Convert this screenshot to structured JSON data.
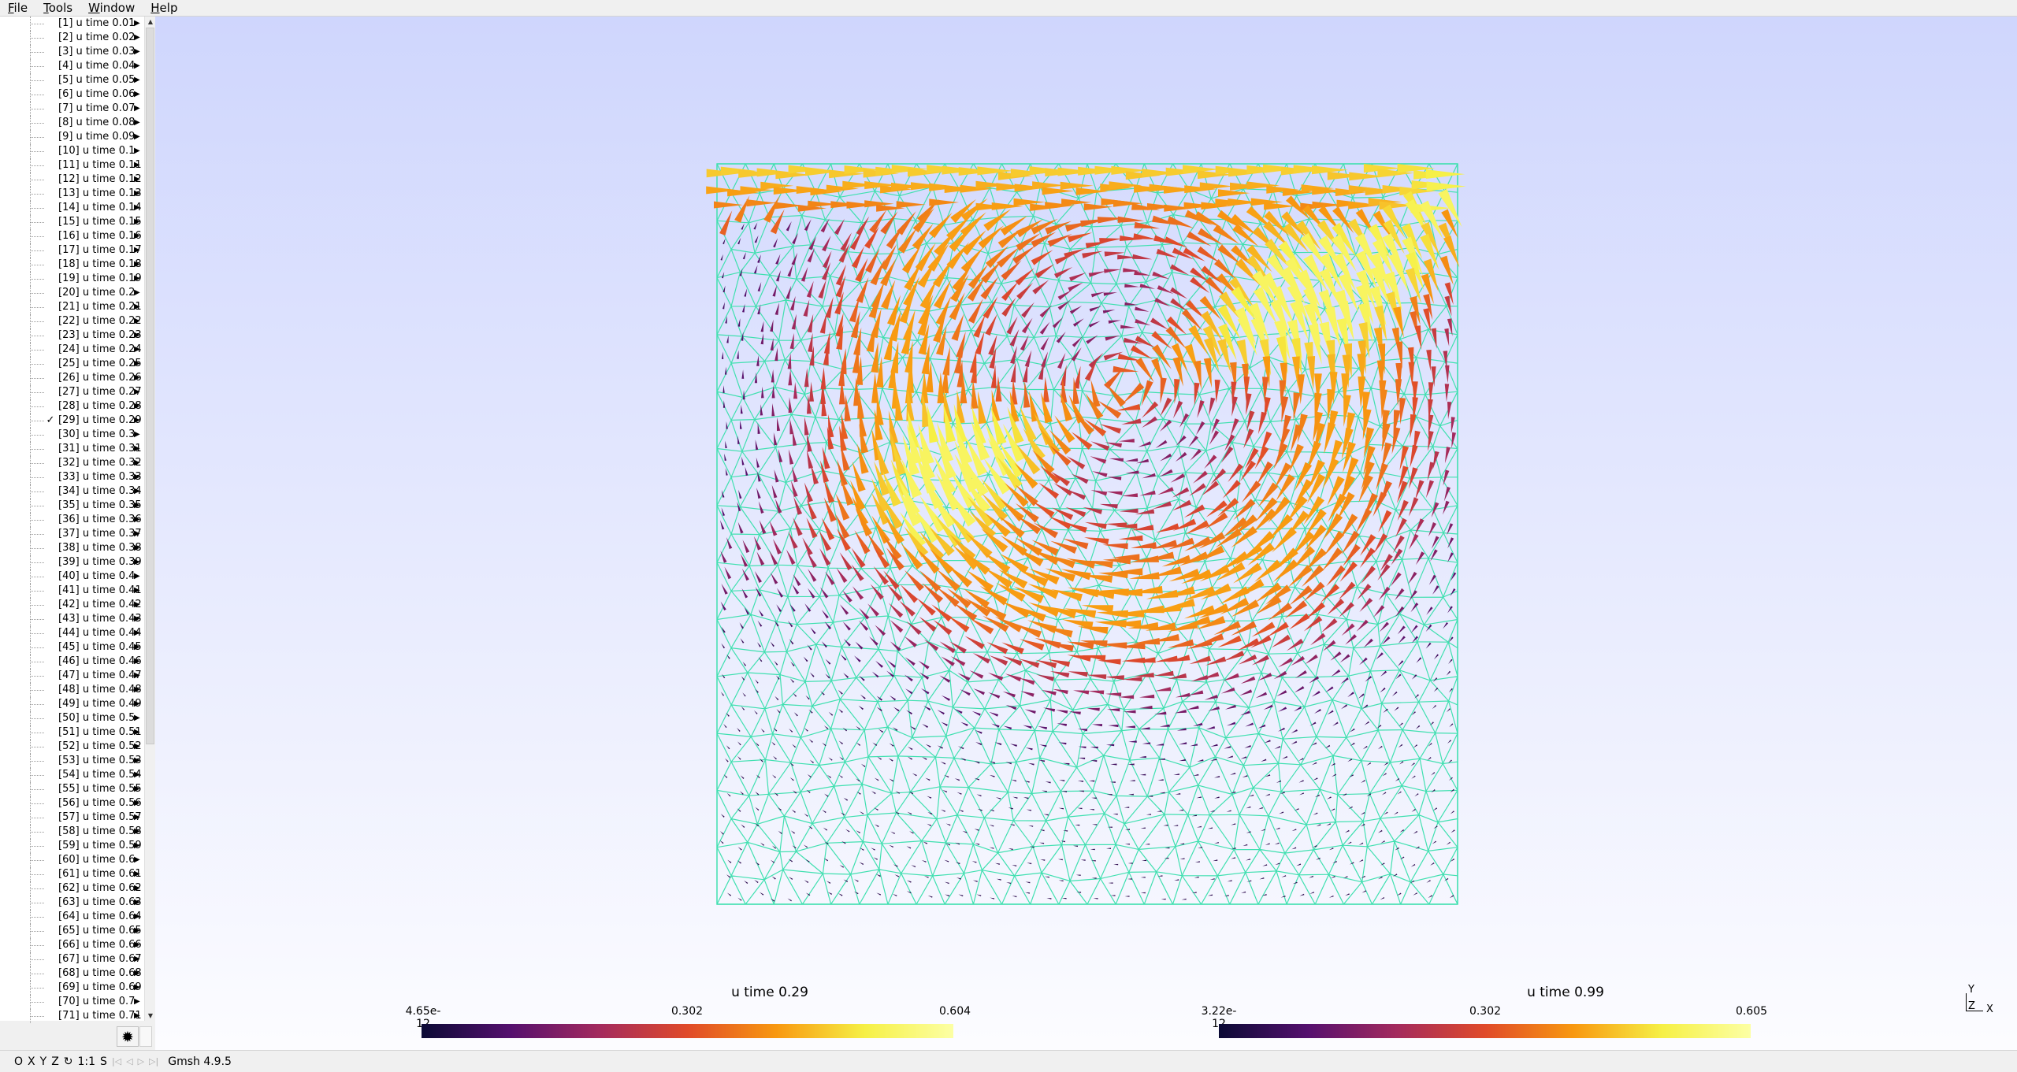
{
  "menu": [
    {
      "label": "File",
      "u": "F",
      "rest": "ile"
    },
    {
      "label": "Tools",
      "u": "T",
      "rest": "ools"
    },
    {
      "label": "Window",
      "u": "W",
      "rest": "indow"
    },
    {
      "label": "Help",
      "u": "H",
      "rest": "elp"
    }
  ],
  "tree": {
    "checked_index": 29,
    "items": [
      "[1] u time 0.01",
      "[2] u time 0.02",
      "[3] u time 0.03",
      "[4] u time 0.04",
      "[5] u time 0.05",
      "[6] u time 0.06",
      "[7] u time 0.07",
      "[8] u time 0.08",
      "[9] u time 0.09",
      "[10] u time 0.1",
      "[11] u time 0.11",
      "[12] u time 0.12",
      "[13] u time 0.13",
      "[14] u time 0.14",
      "[15] u time 0.15",
      "[16] u time 0.16",
      "[17] u time 0.17",
      "[18] u time 0.18",
      "[19] u time 0.19",
      "[20] u time 0.2",
      "[21] u time 0.21",
      "[22] u time 0.22",
      "[23] u time 0.23",
      "[24] u time 0.24",
      "[25] u time 0.25",
      "[26] u time 0.26",
      "[27] u time 0.27",
      "[28] u time 0.28",
      "[29] u time 0.29",
      "[30] u time 0.3",
      "[31] u time 0.31",
      "[32] u time 0.32",
      "[33] u time 0.33",
      "[34] u time 0.34",
      "[35] u time 0.35",
      "[36] u time 0.36",
      "[37] u time 0.37",
      "[38] u time 0.38",
      "[39] u time 0.39",
      "[40] u time 0.4",
      "[41] u time 0.41",
      "[42] u time 0.42",
      "[43] u time 0.43",
      "[44] u time 0.44",
      "[45] u time 0.45",
      "[46] u time 0.46",
      "[47] u time 0.47",
      "[48] u time 0.48",
      "[49] u time 0.49",
      "[50] u time 0.5",
      "[51] u time 0.51",
      "[52] u time 0.52",
      "[53] u time 0.53",
      "[54] u time 0.54",
      "[55] u time 0.55",
      "[56] u time 0.56",
      "[57] u time 0.57",
      "[58] u time 0.58",
      "[59] u time 0.59",
      "[60] u time 0.6",
      "[61] u time 0.61",
      "[62] u time 0.62",
      "[63] u time 0.63",
      "[64] u time 0.64",
      "[65] u time 0.65",
      "[66] u time 0.66",
      "[67] u time 0.67",
      "[68] u time 0.68",
      "[69] u time 0.69",
      "[70] u time 0.7",
      "[71] u time 0.71"
    ],
    "check_glyph": "✓",
    "arrow_glyph": "▶"
  },
  "gear_icon": "✹",
  "colorbars": [
    {
      "title": "u time 0.29",
      "min": "4.65e-12",
      "mid": "0.302",
      "max": "0.604"
    },
    {
      "title": "u time 0.99",
      "min": "3.22e-12",
      "mid": "0.302",
      "max": "0.605"
    }
  ],
  "axes": {
    "y": "Y",
    "z": "Z",
    "x": "X"
  },
  "status": {
    "buttons": [
      "O",
      "X",
      "Y",
      "Z",
      "↻",
      "1:1",
      "S"
    ],
    "playback": [
      "|◁",
      "◁",
      "▷",
      "▷|"
    ],
    "version": "Gmsh 4.9.5"
  },
  "colors": {
    "mesh": "#40e0b0",
    "viewport_top": "#cfd6fd",
    "viewport_bottom": "#fcfcff",
    "cmap": [
      "#0b0a35",
      "#55106e",
      "#a32a5e",
      "#e04a2a",
      "#f89810",
      "#f6f045",
      "#fcffa4"
    ]
  }
}
